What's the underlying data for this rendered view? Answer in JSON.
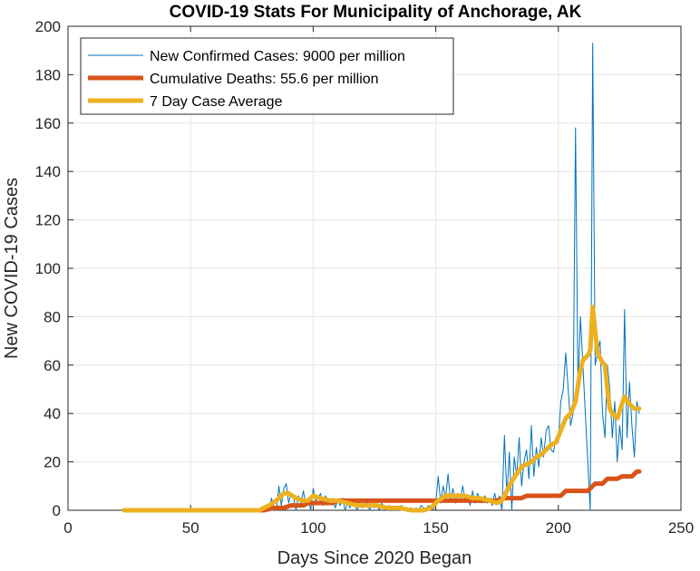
{
  "chart_data": {
    "type": "line",
    "title": "COVID-19 Stats For Municipality of Anchorage, AK",
    "xlabel": "Days Since 2020 Began",
    "ylabel": "New COVID-19 Cases",
    "xlim": [
      0,
      250
    ],
    "ylim": [
      0,
      200
    ],
    "xticks": [
      0,
      50,
      100,
      150,
      200,
      250
    ],
    "yticks": [
      0,
      20,
      40,
      60,
      80,
      100,
      120,
      140,
      160,
      180,
      200
    ],
    "grid": true,
    "legend_position": "top-left",
    "series": [
      {
        "name": "New Confirmed Cases: 9000 per million",
        "color": "#0072BD",
        "linewidth": "thin",
        "points": [
          [
            23,
            0
          ],
          [
            40,
            0
          ],
          [
            60,
            0
          ],
          [
            75,
            0
          ],
          [
            80,
            0
          ],
          [
            81,
            2
          ],
          [
            82,
            0
          ],
          [
            83,
            5
          ],
          [
            84,
            1
          ],
          [
            85,
            0
          ],
          [
            86,
            10
          ],
          [
            87,
            2
          ],
          [
            88,
            9
          ],
          [
            89,
            11
          ],
          [
            90,
            3
          ],
          [
            91,
            7
          ],
          [
            92,
            5
          ],
          [
            93,
            0
          ],
          [
            94,
            6
          ],
          [
            95,
            3
          ],
          [
            96,
            8
          ],
          [
            97,
            2
          ],
          [
            98,
            5
          ],
          [
            99,
            0
          ],
          [
            100,
            9
          ],
          [
            101,
            4
          ],
          [
            102,
            5
          ],
          [
            103,
            7
          ],
          [
            104,
            2
          ],
          [
            105,
            6
          ],
          [
            106,
            4
          ],
          [
            107,
            3
          ],
          [
            108,
            5
          ],
          [
            109,
            1
          ],
          [
            110,
            4
          ],
          [
            111,
            2
          ],
          [
            112,
            5
          ],
          [
            113,
            0
          ],
          [
            114,
            3
          ],
          [
            115,
            1
          ],
          [
            116,
            4
          ],
          [
            117,
            2
          ],
          [
            118,
            0
          ],
          [
            119,
            3
          ],
          [
            120,
            1
          ],
          [
            121,
            2
          ],
          [
            122,
            4
          ],
          [
            123,
            0
          ],
          [
            124,
            3
          ],
          [
            125,
            1
          ],
          [
            126,
            2
          ],
          [
            127,
            0
          ],
          [
            128,
            3
          ],
          [
            129,
            1
          ],
          [
            130,
            0
          ],
          [
            131,
            2
          ],
          [
            132,
            1
          ],
          [
            133,
            0
          ],
          [
            134,
            1
          ],
          [
            135,
            0
          ],
          [
            136,
            2
          ],
          [
            137,
            0
          ],
          [
            138,
            1
          ],
          [
            139,
            0
          ],
          [
            140,
            1
          ],
          [
            141,
            0
          ],
          [
            142,
            1
          ],
          [
            143,
            0
          ],
          [
            144,
            2
          ],
          [
            145,
            1
          ],
          [
            146,
            0
          ],
          [
            147,
            2
          ],
          [
            148,
            1
          ],
          [
            149,
            0
          ],
          [
            150,
            3
          ],
          [
            151,
            14
          ],
          [
            152,
            3
          ],
          [
            153,
            10
          ],
          [
            154,
            5
          ],
          [
            155,
            15
          ],
          [
            156,
            4
          ],
          [
            157,
            9
          ],
          [
            158,
            3
          ],
          [
            159,
            7
          ],
          [
            160,
            5
          ],
          [
            161,
            10
          ],
          [
            162,
            4
          ],
          [
            163,
            6
          ],
          [
            164,
            2
          ],
          [
            165,
            8
          ],
          [
            166,
            3
          ],
          [
            167,
            7
          ],
          [
            168,
            5
          ],
          [
            169,
            4
          ],
          [
            170,
            6
          ],
          [
            171,
            3
          ],
          [
            172,
            5
          ],
          [
            173,
            2
          ],
          [
            174,
            7
          ],
          [
            175,
            3
          ],
          [
            176,
            6
          ],
          [
            177,
            0
          ],
          [
            178,
            31
          ],
          [
            179,
            6
          ],
          [
            180,
            24
          ],
          [
            181,
            0
          ],
          [
            182,
            22
          ],
          [
            183,
            14
          ],
          [
            184,
            30
          ],
          [
            185,
            10
          ],
          [
            186,
            20
          ],
          [
            187,
            25
          ],
          [
            188,
            13
          ],
          [
            189,
            35
          ],
          [
            190,
            14
          ],
          [
            191,
            26
          ],
          [
            192,
            18
          ],
          [
            193,
            30
          ],
          [
            194,
            22
          ],
          [
            195,
            33
          ],
          [
            196,
            35
          ],
          [
            197,
            25
          ],
          [
            198,
            24
          ],
          [
            199,
            30
          ],
          [
            200,
            28
          ],
          [
            201,
            45
          ],
          [
            202,
            50
          ],
          [
            203,
            65
          ],
          [
            204,
            50
          ],
          [
            205,
            35
          ],
          [
            206,
            40
          ],
          [
            207,
            158
          ],
          [
            208,
            50
          ],
          [
            209,
            80
          ],
          [
            210,
            60
          ],
          [
            211,
            40
          ],
          [
            212,
            20
          ],
          [
            213,
            0
          ],
          [
            214,
            193
          ],
          [
            215,
            60
          ],
          [
            216,
            65
          ],
          [
            217,
            70
          ],
          [
            218,
            40
          ],
          [
            219,
            30
          ],
          [
            220,
            60
          ],
          [
            221,
            50
          ],
          [
            222,
            30
          ],
          [
            223,
            45
          ],
          [
            224,
            20
          ],
          [
            225,
            35
          ],
          [
            226,
            25
          ],
          [
            227,
            83
          ],
          [
            228,
            30
          ],
          [
            229,
            53
          ],
          [
            230,
            35
          ],
          [
            231,
            22
          ],
          [
            232,
            45
          ],
          [
            233,
            40
          ]
        ]
      },
      {
        "name": "Cumulative Deaths: 55.6 per million",
        "color": "#D95319",
        "linewidth": "thick",
        "points": [
          [
            23,
            0
          ],
          [
            80,
            0
          ],
          [
            84,
            1
          ],
          [
            88,
            1
          ],
          [
            91,
            2
          ],
          [
            96,
            2
          ],
          [
            98,
            3
          ],
          [
            108,
            3
          ],
          [
            110,
            4
          ],
          [
            175,
            4
          ],
          [
            178,
            5
          ],
          [
            185,
            5
          ],
          [
            187,
            6
          ],
          [
            201,
            6
          ],
          [
            203,
            8
          ],
          [
            212,
            8
          ],
          [
            215,
            11
          ],
          [
            218,
            11
          ],
          [
            220,
            13
          ],
          [
            224,
            13
          ],
          [
            226,
            14
          ],
          [
            230,
            14
          ],
          [
            232,
            16
          ],
          [
            233,
            16
          ]
        ]
      },
      {
        "name": "7 Day Case Average",
        "color": "#EDB120",
        "linewidth": "thick",
        "points": [
          [
            23,
            0
          ],
          [
            60,
            0
          ],
          [
            78,
            0
          ],
          [
            82,
            2
          ],
          [
            85,
            4
          ],
          [
            88,
            7
          ],
          [
            90,
            7
          ],
          [
            93,
            5
          ],
          [
            96,
            4
          ],
          [
            98,
            4
          ],
          [
            100,
            6
          ],
          [
            103,
            5
          ],
          [
            107,
            4
          ],
          [
            110,
            4
          ],
          [
            114,
            3
          ],
          [
            118,
            2
          ],
          [
            122,
            2
          ],
          [
            126,
            2
          ],
          [
            130,
            1
          ],
          [
            135,
            1
          ],
          [
            140,
            0
          ],
          [
            145,
            0
          ],
          [
            148,
            1
          ],
          [
            151,
            4
          ],
          [
            154,
            6
          ],
          [
            158,
            6
          ],
          [
            162,
            6
          ],
          [
            165,
            5
          ],
          [
            168,
            5
          ],
          [
            172,
            4
          ],
          [
            175,
            3
          ],
          [
            177,
            4
          ],
          [
            179,
            8
          ],
          [
            181,
            12
          ],
          [
            183,
            15
          ],
          [
            185,
            18
          ],
          [
            187,
            19
          ],
          [
            189,
            20
          ],
          [
            191,
            22
          ],
          [
            193,
            23
          ],
          [
            195,
            25
          ],
          [
            197,
            27
          ],
          [
            199,
            28
          ],
          [
            201,
            33
          ],
          [
            203,
            38
          ],
          [
            205,
            40
          ],
          [
            207,
            45
          ],
          [
            209,
            58
          ],
          [
            210,
            62
          ],
          [
            212,
            64
          ],
          [
            213,
            66
          ],
          [
            214,
            84
          ],
          [
            215,
            74
          ],
          [
            216,
            65
          ],
          [
            217,
            63
          ],
          [
            218,
            61
          ],
          [
            219,
            60
          ],
          [
            220,
            50
          ],
          [
            221,
            42
          ],
          [
            222,
            40
          ],
          [
            224,
            38
          ],
          [
            226,
            44
          ],
          [
            227,
            47
          ],
          [
            229,
            44
          ],
          [
            231,
            42
          ],
          [
            233,
            42
          ]
        ]
      }
    ]
  }
}
